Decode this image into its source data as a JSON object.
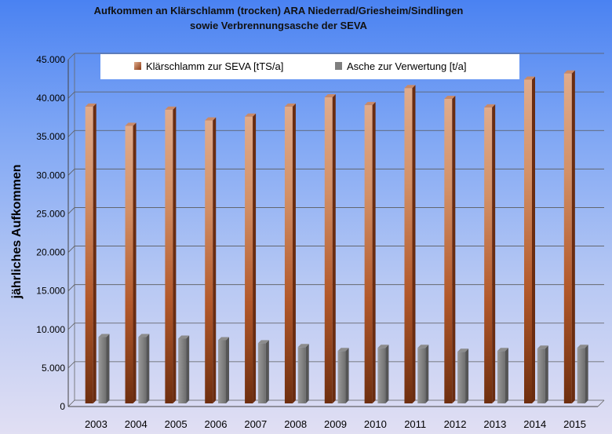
{
  "chart_data": {
    "type": "bar",
    "title_line1": "Aufkommen an Klärschlamm (trocken) ARA Niederrad/Griesheim/Sindlingen",
    "title_line2": "sowie Verbrennungsasche der SEVA",
    "ylabel": "jährliches Aufkommen",
    "xlabel": "",
    "ylim": [
      0,
      45000
    ],
    "yticks": [
      0,
      5000,
      10000,
      15000,
      20000,
      25000,
      30000,
      35000,
      40000,
      45000
    ],
    "ytick_labels": [
      "0",
      "5.000",
      "10.000",
      "15.000",
      "20.000",
      "25.000",
      "30.000",
      "35.000",
      "40.000",
      "45.000"
    ],
    "grid": true,
    "legend_position": "top",
    "categories": [
      "2003",
      "2004",
      "2005",
      "2006",
      "2007",
      "2008",
      "2009",
      "2010",
      "2011",
      "2012",
      "2013",
      "2014",
      "2015"
    ],
    "series": [
      {
        "name": "Klärschlamm zur SEVA [tTS/a]",
        "color": "#c8622a",
        "values": [
          38500,
          36000,
          38100,
          36700,
          37200,
          38500,
          39700,
          38700,
          40900,
          39500,
          38400,
          42000,
          42800
        ]
      },
      {
        "name": "Asche zur Verwertung [t/a]",
        "color": "#7f7f7f",
        "values": [
          8600,
          8600,
          8400,
          8200,
          7800,
          7300,
          6800,
          7200,
          7200,
          6700,
          6800,
          7100,
          7200
        ]
      }
    ]
  }
}
